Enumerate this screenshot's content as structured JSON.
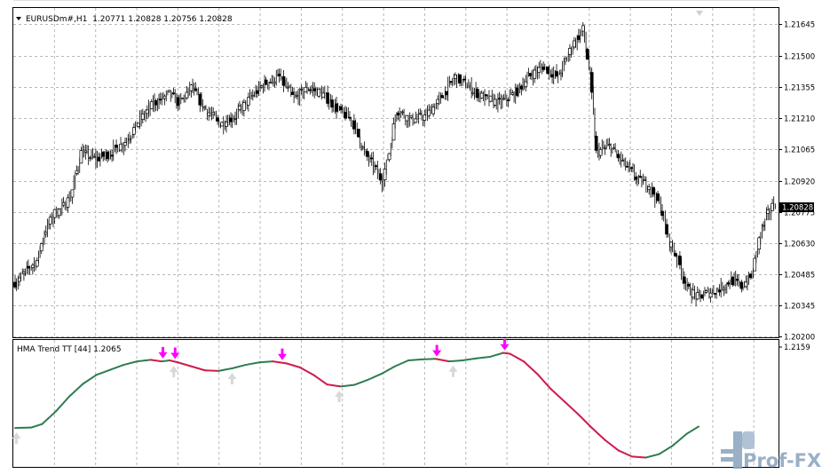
{
  "colors": {
    "frame": "#000000",
    "grid": "#b8b8b8",
    "candle": "#000000",
    "up_segment": "#2e7d4f",
    "down_segment": "#d11a4b",
    "arrow_down": "#ff00ff",
    "arrow_up": "#d8d8d8",
    "current_price_line": "#c0c0c0",
    "watermark": "#8fa8c0"
  },
  "main_chart": {
    "header_text": "EURUSDm#,H1  1.20771 1.20828 1.20756 1.20828",
    "current_price_label": "1.20828",
    "current_price": 1.20828
  },
  "indicator": {
    "header_text": "HMA Trend TT [44] 1.2065",
    "axis_label": "1.2159"
  },
  "watermark": {
    "text": "Prof-FX"
  },
  "chart_data": [
    {
      "type": "candlestick",
      "title": "EURUSDm#,H1",
      "y_ticks": [
        "1.21645",
        "1.21500",
        "1.21355",
        "1.21210",
        "1.21065",
        "1.20920",
        "1.20775",
        "1.20630",
        "1.20485",
        "1.20345",
        "1.20200"
      ],
      "ylim": [
        1.20195,
        1.2172
      ],
      "grid": true,
      "close_anchors": [
        [
          0,
          1.2045
        ],
        [
          5,
          1.2048
        ],
        [
          10,
          1.2052
        ],
        [
          15,
          1.2055
        ],
        [
          20,
          1.2068
        ],
        [
          27,
          1.2077
        ],
        [
          32,
          1.2079
        ],
        [
          38,
          1.2085
        ],
        [
          45,
          1.2105
        ],
        [
          55,
          1.2102
        ],
        [
          65,
          1.2105
        ],
        [
          75,
          1.211
        ],
        [
          85,
          1.212
        ],
        [
          95,
          1.2128
        ],
        [
          105,
          1.2132
        ],
        [
          112,
          1.2128
        ],
        [
          120,
          1.2135
        ],
        [
          130,
          1.2125
        ],
        [
          140,
          1.2118
        ],
        [
          150,
          1.2122
        ],
        [
          160,
          1.213
        ],
        [
          170,
          1.2137
        ],
        [
          180,
          1.214
        ],
        [
          190,
          1.213
        ],
        [
          200,
          1.2135
        ],
        [
          210,
          1.2132
        ],
        [
          220,
          1.2125
        ],
        [
          230,
          1.212
        ],
        [
          238,
          1.2105
        ],
        [
          245,
          1.2098
        ],
        [
          250,
          1.2092
        ],
        [
          255,
          1.2105
        ],
        [
          260,
          1.2125
        ],
        [
          270,
          1.212
        ],
        [
          280,
          1.2122
        ],
        [
          290,
          1.213
        ],
        [
          300,
          1.214
        ],
        [
          310,
          1.2135
        ],
        [
          320,
          1.213
        ],
        [
          330,
          1.2128
        ],
        [
          340,
          1.2132
        ],
        [
          350,
          1.214
        ],
        [
          360,
          1.2145
        ],
        [
          370,
          1.214
        ],
        [
          380,
          1.2155
        ],
        [
          387,
          1.2162
        ],
        [
          392,
          1.214
        ],
        [
          396,
          1.2105
        ],
        [
          405,
          1.2108
        ],
        [
          415,
          1.21
        ],
        [
          425,
          1.2092
        ],
        [
          432,
          1.209
        ],
        [
          440,
          1.208
        ],
        [
          445,
          1.2065
        ],
        [
          452,
          1.2055
        ],
        [
          458,
          1.2042
        ],
        [
          465,
          1.2038
        ],
        [
          472,
          1.204
        ],
        [
          480,
          1.2042
        ],
        [
          488,
          1.2046
        ],
        [
          495,
          1.2043
        ],
        [
          502,
          1.2048
        ],
        [
          508,
          1.2068
        ],
        [
          514,
          1.2078
        ],
        [
          519,
          1.2083
        ]
      ],
      "bar_count": 520
    },
    {
      "type": "line",
      "title": "HMA Trend TT [44]",
      "y_ticks": [
        "1.2159"
      ],
      "value": 1.2065,
      "series": [
        {
          "values": [
            [
              0,
              1.2007
            ],
            [
              12,
              1.2008
            ],
            [
              20,
              1.2015
            ],
            [
              30,
              1.204
            ],
            [
              40,
              1.207
            ],
            [
              50,
              1.2095
            ],
            [
              60,
              1.2113
            ],
            [
              70,
              1.2123
            ],
            [
              80,
              1.2133
            ],
            [
              90,
              1.214
            ],
            [
              100,
              1.2143
            ],
            [
              108,
              1.214
            ],
            [
              114,
              1.2142
            ],
            [
              120,
              1.2138
            ],
            [
              130,
              1.213
            ],
            [
              140,
              1.2122
            ],
            [
              150,
              1.2121
            ],
            [
              160,
              1.2126
            ],
            [
              170,
              1.2133
            ],
            [
              180,
              1.2138
            ],
            [
              190,
              1.214
            ],
            [
              200,
              1.2136
            ],
            [
              210,
              1.2128
            ],
            [
              220,
              1.2113
            ],
            [
              230,
              1.2094
            ],
            [
              240,
              1.209
            ],
            [
              250,
              1.2093
            ],
            [
              260,
              1.2103
            ],
            [
              270,
              1.2115
            ],
            [
              280,
              1.213
            ],
            [
              290,
              1.2142
            ],
            [
              300,
              1.2144
            ],
            [
              310,
              1.2145
            ],
            [
              320,
              1.214
            ],
            [
              330,
              1.2142
            ],
            [
              340,
              1.2146
            ],
            [
              350,
              1.2149
            ],
            [
              360,
              1.2157
            ],
            [
              365,
              1.2155
            ],
            [
              375,
              1.214
            ],
            [
              385,
              1.2115
            ],
            [
              395,
              1.2085
            ],
            [
              405,
              1.206
            ],
            [
              415,
              1.2035
            ],
            [
              425,
              1.2008
            ],
            [
              435,
              1.1983
            ],
            [
              445,
              1.1962
            ],
            [
              455,
              1.195
            ],
            [
              465,
              1.1948
            ],
            [
              475,
              1.1955
            ],
            [
              485,
              1.1972
            ],
            [
              495,
              1.1995
            ],
            [
              504,
              1.201
            ]
          ]
        }
      ],
      "down_arrows": [
        109,
        118,
        197,
        311,
        361
      ],
      "up_arrows": [
        1,
        117,
        160,
        239,
        323
      ]
    }
  ]
}
